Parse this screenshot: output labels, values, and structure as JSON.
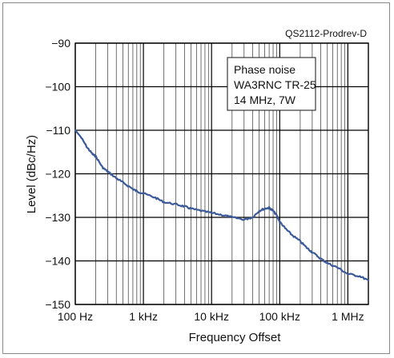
{
  "chart_data": {
    "type": "line",
    "corner_label": "QS2112-Prodrev-D",
    "annotation_lines": [
      "Phase noise",
      "WA3RNC TR-25",
      "14 MHz, 7W"
    ],
    "xlabel": "Frequency Offset",
    "ylabel": "Level (dBc/Hz)",
    "x_scale": "log",
    "xlim_hz": [
      100,
      2000000
    ],
    "ylim": [
      -150,
      -90
    ],
    "x_ticks": [
      {
        "value": 100,
        "label": "100 Hz"
      },
      {
        "value": 1000,
        "label": "1 kHz"
      },
      {
        "value": 10000,
        "label": "10 kHz"
      },
      {
        "value": 100000,
        "label": "100 kHz"
      },
      {
        "value": 1000000,
        "label": "1 MHz"
      }
    ],
    "y_ticks": [
      {
        "value": -90,
        "label": "−90"
      },
      {
        "value": -100,
        "label": "−100"
      },
      {
        "value": -110,
        "label": "−110"
      },
      {
        "value": -120,
        "label": "−120"
      },
      {
        "value": -130,
        "label": "−130"
      },
      {
        "value": -140,
        "label": "−140"
      },
      {
        "value": -150,
        "label": "−150"
      }
    ],
    "grid": true,
    "series": [
      {
        "color": "#3b5a9a",
        "x": [
          100,
          120,
          150,
          180,
          200,
          250,
          300,
          400,
          500,
          700,
          800,
          1000,
          1500,
          2000,
          3000,
          4000,
          5000,
          7000,
          10000,
          15000,
          20000,
          30000,
          40000,
          50000,
          60000,
          70000,
          80000,
          90000,
          100000,
          120000,
          150000,
          200000,
          250000,
          300000,
          400000,
          500000,
          700000,
          1000000,
          1500000,
          2000000
        ],
        "y": [
          -110.0,
          -111.5,
          -114.0,
          -115.5,
          -116.0,
          -118.5,
          -119.5,
          -121.0,
          -122.0,
          -123.5,
          -124.0,
          -124.5,
          -125.5,
          -126.5,
          -127.0,
          -127.5,
          -128.0,
          -128.5,
          -129.0,
          -129.5,
          -130.0,
          -130.5,
          -130.0,
          -128.5,
          -128.0,
          -127.8,
          -128.5,
          -129.5,
          -131.0,
          -132.5,
          -134.0,
          -135.5,
          -137.0,
          -138.0,
          -139.5,
          -140.5,
          -141.5,
          -143.0,
          -143.5,
          -144.5
        ]
      }
    ]
  }
}
